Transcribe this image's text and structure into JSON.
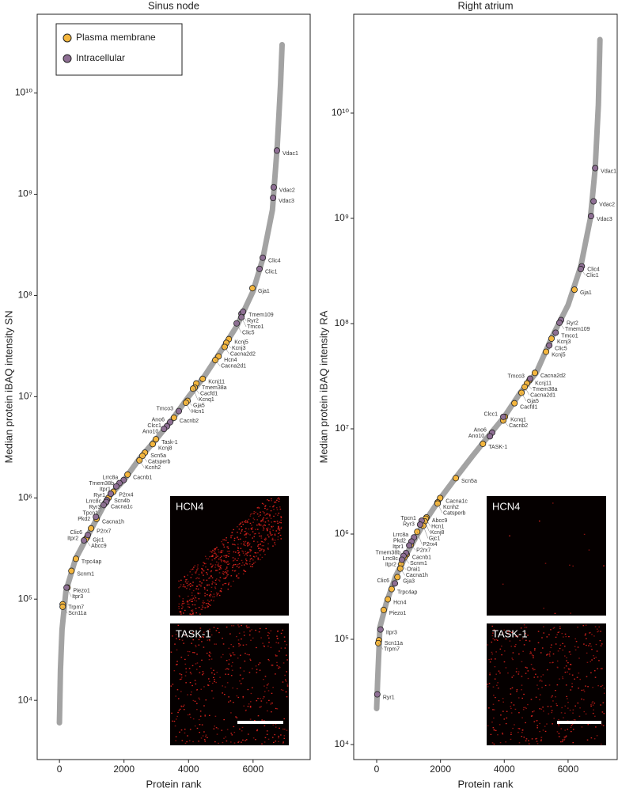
{
  "chart_data": [
    {
      "type": "scatter",
      "title": "Sinus node",
      "x_label": "Protein rank",
      "y_label": "Median protein iBAQ intensity SN",
      "log_y": true,
      "legend": "upper left",
      "xlim": [
        -690,
        7770
      ],
      "xticks": [
        0,
        2000,
        4000,
        6000
      ],
      "ylim": [
        2600,
        60000000000
      ],
      "yticks": [
        {
          "value": 10000,
          "label": "10⁴"
        },
        {
          "value": 100000,
          "label": "10⁵"
        },
        {
          "value": 1000000,
          "label": "10⁶"
        },
        {
          "value": 10000000,
          "label": "10⁷"
        },
        {
          "value": 100000000,
          "label": "10⁸"
        },
        {
          "value": 1000000000,
          "label": "10⁹"
        },
        {
          "value": 10000000000,
          "label": "10¹⁰"
        }
      ],
      "curve": {
        "color": "#a3a3a3",
        "x": [
          0,
          30,
          80,
          200,
          500,
          1000,
          1500,
          2000,
          2500,
          3000,
          3500,
          4000,
          4500,
          5000,
          5500,
          6000,
          6300,
          6600,
          6750,
          6850,
          6900
        ],
        "values": [
          6000,
          20000,
          50000,
          120000,
          250000,
          500000,
          1000000,
          1500000,
          2500000,
          3800000,
          6000000,
          10000000,
          16000000,
          28000000,
          50000000,
          110000000,
          230000000,
          700000000,
          3000000000,
          12000000000,
          30000000000
        ]
      },
      "series": [
        {
          "name": "Plasma membrane",
          "color": "#f4b63e",
          "labels": [
            "Gja1",
            "Kcnj5",
            "Kcnj3",
            "Cacna2d2",
            "Hcn4",
            "Cacna2d1",
            "Kcnj11",
            "Tmem38a",
            "Cacfd1",
            "Kcnq1",
            "Gja5",
            "Hcn1",
            "Cacnb2",
            "Task-1",
            "Kcnj8",
            "Scn5a",
            "Catsperb",
            "Kcnh2",
            "Cacnb1",
            "P2rx4",
            "Scn4b",
            "Cacna1c",
            "Cacna1h",
            "P2rx7",
            "Gjc1",
            "Abcc9",
            "Trpc4ap",
            "Scnm1",
            "Piezo1",
            "Trpm7",
            "Scn11a"
          ],
          "x": [
            5980,
            5250,
            5170,
            5120,
            4930,
            4830,
            4440,
            4240,
            4190,
            4140,
            3970,
            3920,
            3550,
            2990,
            2890,
            2650,
            2570,
            2480,
            2110,
            1670,
            1520,
            1420,
            1150,
            980,
            860,
            810,
            510,
            370,
            250,
            100,
            100
          ],
          "values": [
            118000000,
            37000000,
            34000000,
            31000000,
            25000000,
            23000000,
            15000000,
            13500000,
            12300000,
            12000000,
            9100000,
            8700000,
            6200000,
            3800000,
            3400000,
            2800000,
            2600000,
            2350000,
            1700000,
            1150000,
            1000000,
            890000,
            620000,
            500000,
            410000,
            390000,
            250000,
            190000,
            130000,
            89000,
            84000
          ]
        },
        {
          "name": "Intracellular",
          "color": "#8e6f94",
          "labels": [
            "Vdac1",
            "Vdac2",
            "Vdac3",
            "Clic4",
            "Clic1",
            "Ryr2",
            "Tmem109",
            "Tmco1",
            "Clic5",
            "Tmco3",
            "Ano6",
            "Clcc1",
            "Ano10",
            "Lrrc8a",
            "Tmem38b",
            "Itpr1",
            "Ryr1",
            "Lrrc8c",
            "Ryr3",
            "Tpcn1",
            "Pkd2",
            "Clic6",
            "Itpr2",
            "Itpr3"
          ],
          "x": [
            6740,
            6640,
            6620,
            6300,
            6200,
            5640,
            5690,
            5640,
            5490,
            3700,
            3430,
            3330,
            3240,
            1990,
            1860,
            1760,
            1590,
            1470,
            1450,
            1370,
            1130,
            880,
            760,
            220
          ],
          "values": [
            2700000000,
            1170000000,
            920000000,
            236000000,
            183000000,
            66000000,
            69000000,
            61000000,
            53000000,
            7200000,
            5600000,
            5100000,
            4800000,
            1500000,
            1400000,
            1300000,
            1100000,
            950000,
            910000,
            850000,
            650000,
            430000,
            380000,
            130000
          ]
        }
      ],
      "insets": [
        {
          "label": "HCN4"
        },
        {
          "label": "TASK-1"
        }
      ]
    },
    {
      "type": "scatter",
      "title": "Right atrium",
      "x_label": "Protein rank",
      "y_label": "Median protein iBAQ intensity RA",
      "log_y": true,
      "xlim": [
        -720,
        7540
      ],
      "xticks": [
        0,
        2000,
        4000,
        6000
      ],
      "ylim": [
        7200,
        87000000000
      ],
      "yticks": [
        {
          "value": 10000,
          "label": "10⁴"
        },
        {
          "value": 100000,
          "label": "10⁵"
        },
        {
          "value": 1000000,
          "label": "10⁶"
        },
        {
          "value": 10000000,
          "label": "10⁷"
        },
        {
          "value": 100000000,
          "label": "10⁸"
        },
        {
          "value": 1000000000,
          "label": "10⁹"
        },
        {
          "value": 10000000000,
          "label": "10¹⁰"
        }
      ],
      "curve": {
        "color": "#a3a3a3",
        "x": [
          0,
          30,
          100,
          300,
          600,
          1000,
          1500,
          2000,
          2500,
          3000,
          3500,
          4000,
          4500,
          5000,
          5500,
          6000,
          6400,
          6700,
          6850,
          6950,
          7000
        ],
        "values": [
          22000,
          40000,
          130000,
          220000,
          400000,
          700000,
          1300000,
          2200000,
          3500000,
          5500000,
          8500000,
          13000000,
          22000000,
          34000000,
          75000000,
          150000000,
          350000000,
          1000000000,
          3000000000,
          12000000000,
          50000000000
        ]
      },
      "series": [
        {
          "color": "#f4b63e",
          "labels": [
            "Gja1",
            "Kcnj3",
            "Kcnj5",
            "Cacna2d2",
            "Kcnj11",
            "Tmem38a",
            "Cacna2d1",
            "Gja5",
            "Cacfd1",
            "Kcnq1",
            "Cacnb2",
            "TASK-1",
            "Scn5a",
            "Cacna1c",
            "Kcnh2",
            "Catsperb",
            "Abcc9",
            "Hcn1",
            "Kcnj8",
            "Gjc1",
            "P2rx4",
            "P2rx7",
            "Cacnb1",
            "Scnm1",
            "Orai1",
            "Cacna1h",
            "Gja3",
            "Trpc4ap",
            "Hcn4",
            "Piezo1",
            "Scn11a",
            "Trpm7"
          ],
          "x": [
            6200,
            5480,
            5310,
            4960,
            4790,
            4710,
            4640,
            4540,
            4320,
            4020,
            3970,
            3330,
            2480,
            1990,
            1910,
            1910,
            1560,
            1540,
            1510,
            1460,
            1270,
            1070,
            940,
            870,
            770,
            740,
            650,
            470,
            350,
            220,
            70,
            50
          ],
          "values": [
            210000000,
            72000000,
            54000000,
            34000000,
            29000000,
            27000000,
            25000000,
            22000000,
            17500000,
            13000000,
            12000000,
            7200000,
            3400000,
            2200000,
            2000000,
            1950000,
            1440000,
            1400000,
            1320000,
            1200000,
            1050000,
            790000,
            640000,
            600000,
            520000,
            470000,
            390000,
            300000,
            240000,
            190000,
            98000,
            92000
          ]
        },
        {
          "color": "#8e6f94",
          "labels": [
            "Vdac1",
            "Vdac2",
            "Vdac3",
            "Clic4",
            "Clic1",
            "Ryr2",
            "Tmem109",
            "Tmco1",
            "Clic5",
            "Tmco3",
            "Clcc1",
            "Ano6",
            "Ano10",
            "Tpcn1",
            "Ryr3",
            "Lrrc8a",
            "Pkd2",
            "Itpr1",
            "Tmem38b",
            "Lrrc8c",
            "Itpr2",
            "Clic6",
            "Itpr3",
            "Ryr1"
          ],
          "x": [
            6850,
            6800,
            6720,
            6430,
            6400,
            5780,
            5730,
            5610,
            5410,
            4810,
            3970,
            3620,
            3550,
            1410,
            1360,
            1170,
            1090,
            1020,
            920,
            840,
            790,
            570,
            120,
            20
          ],
          "values": [
            3000000000,
            1450000000,
            1050000000,
            350000000,
            330000000,
            108000000,
            102000000,
            82000000,
            62000000,
            30000000,
            13000000,
            9200000,
            8500000,
            1340000,
            1230000,
            930000,
            850000,
            780000,
            660000,
            620000,
            570000,
            340000,
            124000,
            30000
          ]
        }
      ],
      "insets": [
        {
          "label": "HCN4"
        },
        {
          "label": "TASK-1"
        }
      ]
    }
  ]
}
